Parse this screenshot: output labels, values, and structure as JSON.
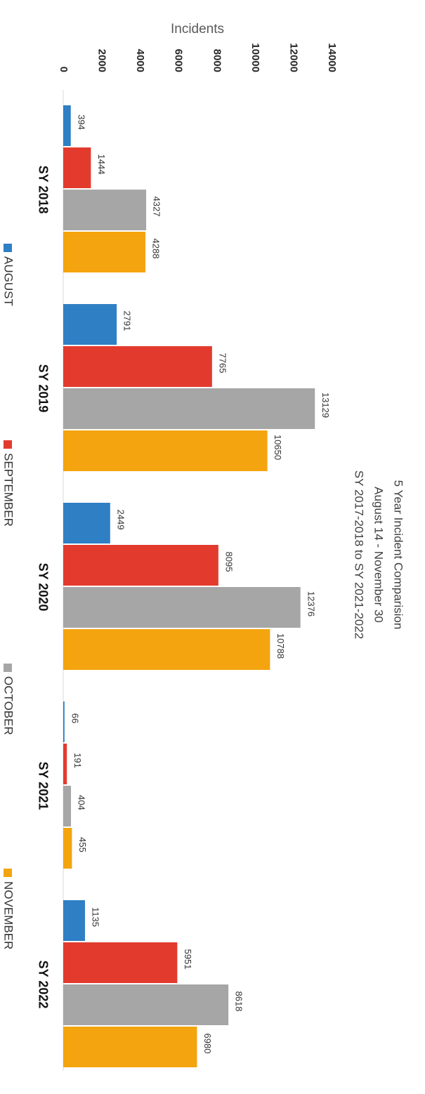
{
  "chart_data": {
    "type": "bar",
    "title": [
      "5 Year Incident Comparision",
      "August 14 - November 30",
      "SY 2017-2018 to SY 2021-2022"
    ],
    "ylabel": "Incidents",
    "xlabel": "",
    "ylim": [
      0,
      14000
    ],
    "yticks": [
      0,
      2000,
      4000,
      6000,
      8000,
      10000,
      12000,
      14000
    ],
    "categories": [
      "SY 2018",
      "SY 2019",
      "SY 2020",
      "SY 2021",
      "SY 2022"
    ],
    "series": [
      {
        "name": "AUGUST",
        "color": "#2f7fc4",
        "values": [
          394,
          2791,
          2449,
          66,
          1135
        ]
      },
      {
        "name": "SEPTEMBER",
        "color": "#e23b2e",
        "values": [
          1444,
          7765,
          8095,
          191,
          5951
        ]
      },
      {
        "name": "OCTOBER",
        "color": "#a6a6a6",
        "values": [
          4327,
          13129,
          12376,
          404,
          8618
        ]
      },
      {
        "name": "NOVEMBER",
        "color": "#f4a40f",
        "values": [
          4288,
          10650,
          10788,
          455,
          6980
        ]
      }
    ],
    "legend_position": "bottom",
    "grid": false,
    "orientation": "rotated-90-clockwise"
  }
}
